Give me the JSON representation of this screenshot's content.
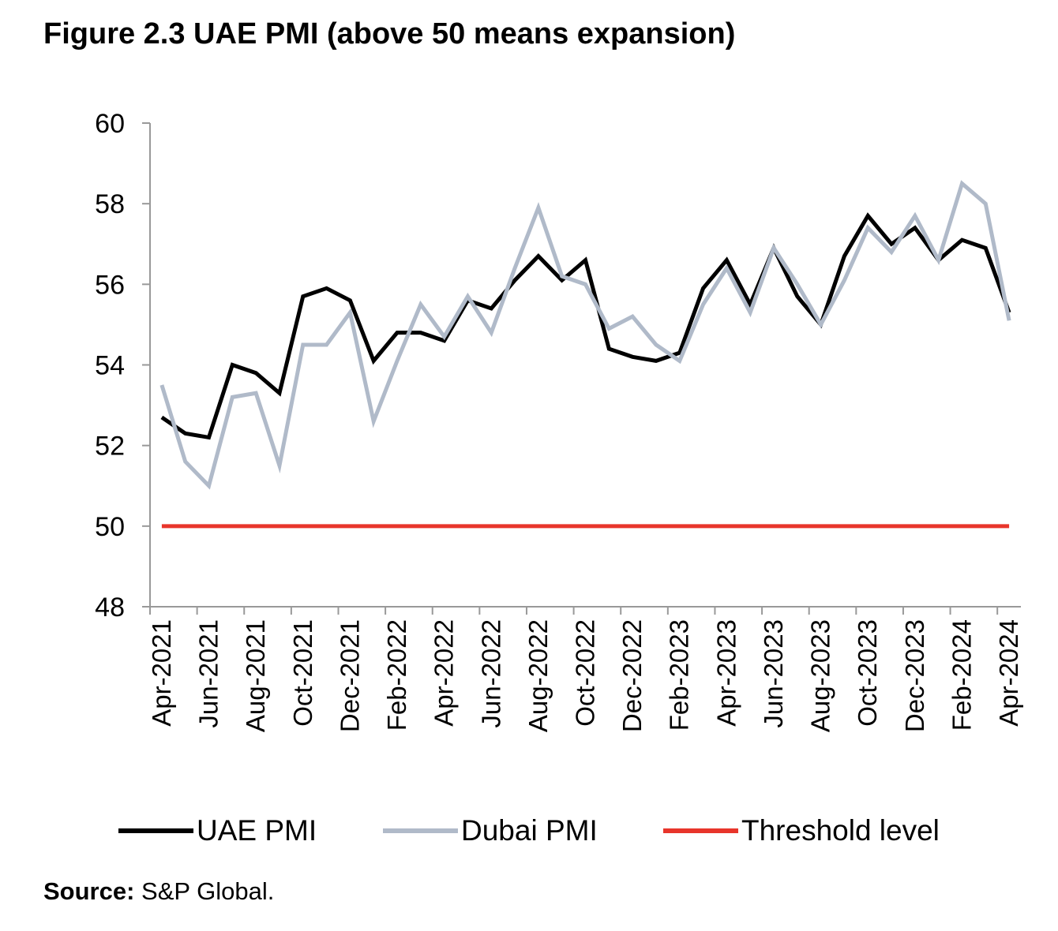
{
  "title": "Figure 2.3 UAE PMI (above 50 means expansion)",
  "source_label": "Source:",
  "source_text": "S&P Global.",
  "chart_data": {
    "type": "line",
    "title": "Figure 2.3 UAE PMI (above 50 means expansion)",
    "xlabel": "",
    "ylabel": "",
    "ylim": [
      48,
      60
    ],
    "yticks": [
      48,
      50,
      52,
      54,
      56,
      58,
      60
    ],
    "grid": false,
    "legend_position": "bottom",
    "categories": [
      "Apr-2021",
      "May-2021",
      "Jun-2021",
      "Jul-2021",
      "Aug-2021",
      "Sep-2021",
      "Oct-2021",
      "Nov-2021",
      "Dec-2021",
      "Jan-2022",
      "Feb-2022",
      "Mar-2022",
      "Apr-2022",
      "May-2022",
      "Jun-2022",
      "Jul-2022",
      "Aug-2022",
      "Sep-2022",
      "Oct-2022",
      "Nov-2022",
      "Dec-2022",
      "Jan-2023",
      "Feb-2023",
      "Mar-2023",
      "Apr-2023",
      "May-2023",
      "Jun-2023",
      "Jul-2023",
      "Aug-2023",
      "Sep-2023",
      "Oct-2023",
      "Nov-2023",
      "Dec-2023",
      "Jan-2024",
      "Feb-2024",
      "Mar-2024",
      "Apr-2024"
    ],
    "tick_labels": [
      "Apr-2021",
      "Jun-2021",
      "Aug-2021",
      "Oct-2021",
      "Dec-2021",
      "Feb-2022",
      "Apr-2022",
      "Jun-2022",
      "Aug-2022",
      "Oct-2022",
      "Dec-2022",
      "Feb-2023",
      "Apr-2023",
      "Jun-2023",
      "Aug-2023",
      "Oct-2023",
      "Dec-2023",
      "Feb-2024",
      "Apr-2024"
    ],
    "series": [
      {
        "name": "UAE PMI",
        "color": "#000000",
        "values": [
          52.7,
          52.3,
          52.2,
          54.0,
          53.8,
          53.3,
          55.7,
          55.9,
          55.6,
          54.1,
          54.8,
          54.8,
          54.6,
          55.6,
          55.4,
          56.1,
          56.7,
          56.1,
          56.6,
          54.4,
          54.2,
          54.1,
          54.3,
          55.9,
          56.6,
          55.5,
          56.9,
          55.7,
          55.0,
          56.7,
          57.7,
          57.0,
          57.4,
          56.6,
          57.1,
          56.9,
          55.3
        ]
      },
      {
        "name": "Dubai PMI",
        "color": "#B0BAC9",
        "values": [
          53.5,
          51.6,
          51.0,
          53.2,
          53.3,
          51.5,
          54.5,
          54.5,
          55.3,
          52.6,
          54.1,
          55.5,
          54.7,
          55.7,
          54.8,
          56.4,
          57.9,
          56.2,
          56.0,
          54.9,
          55.2,
          54.5,
          54.1,
          55.5,
          56.4,
          55.3,
          56.9,
          56.0,
          55.0,
          56.1,
          57.4,
          56.8,
          57.7,
          56.6,
          58.5,
          58.0,
          55.1
        ]
      },
      {
        "name": "Threshold level",
        "color": "#E8352B",
        "values": [
          50,
          50,
          50,
          50,
          50,
          50,
          50,
          50,
          50,
          50,
          50,
          50,
          50,
          50,
          50,
          50,
          50,
          50,
          50,
          50,
          50,
          50,
          50,
          50,
          50,
          50,
          50,
          50,
          50,
          50,
          50,
          50,
          50,
          50,
          50,
          50,
          50
        ]
      }
    ]
  }
}
